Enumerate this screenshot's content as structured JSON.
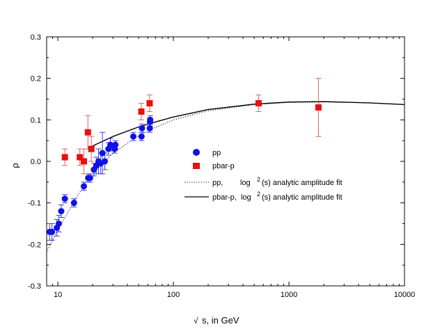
{
  "chart_data": {
    "type": "scatter",
    "x_scale": "log",
    "xlim": [
      8,
      10000
    ],
    "ylim": [
      -0.3,
      0.3
    ],
    "xlabel_root": "√",
    "xlabel": "s, in GeV",
    "ylabel": "ρ",
    "x_ticks": [
      {
        "value": 10,
        "label": "10"
      },
      {
        "value": 100,
        "label": "100"
      },
      {
        "value": 1000,
        "label": "1000"
      },
      {
        "value": 10000,
        "label": "10000"
      }
    ],
    "y_ticks": [
      {
        "value": -0.3,
        "label": "-0.3"
      },
      {
        "value": -0.2,
        "label": "-0.2"
      },
      {
        "value": -0.1,
        "label": "-0.1"
      },
      {
        "value": 0.0,
        "label": "0.0"
      },
      {
        "value": 0.1,
        "label": "0.1"
      },
      {
        "value": 0.2,
        "label": "0.2"
      },
      {
        "value": 0.3,
        "label": "0.3"
      }
    ],
    "series": [
      {
        "name": "pp",
        "marker": "circle",
        "color": "#1010e8",
        "error_color": "#3a3ae0",
        "points": [
          {
            "x": 8.5,
            "y": -0.17,
            "err": 0.02
          },
          {
            "x": 8.9,
            "y": -0.17,
            "err": 0.02
          },
          {
            "x": 9.8,
            "y": -0.16,
            "err": 0.02
          },
          {
            "x": 10.2,
            "y": -0.15,
            "err": 0.02
          },
          {
            "x": 10.7,
            "y": -0.12,
            "err": 0.015
          },
          {
            "x": 11.5,
            "y": -0.09,
            "err": 0.01
          },
          {
            "x": 13.8,
            "y": -0.1,
            "err": 0.01
          },
          {
            "x": 16.8,
            "y": -0.06,
            "err": 0.01
          },
          {
            "x": 18.3,
            "y": -0.04,
            "err": 0.01
          },
          {
            "x": 19.0,
            "y": -0.04,
            "err": 0.01
          },
          {
            "x": 20.5,
            "y": -0.02,
            "err": 0.015
          },
          {
            "x": 21.5,
            "y": -0.01,
            "err": 0.02
          },
          {
            "x": 22.5,
            "y": 0.0,
            "err": 0.03
          },
          {
            "x": 23.5,
            "y": -0.005,
            "err": 0.025
          },
          {
            "x": 24.3,
            "y": 0.02,
            "err": 0.05
          },
          {
            "x": 25.5,
            "y": 0.0,
            "err": 0.02
          },
          {
            "x": 27.4,
            "y": 0.03,
            "err": 0.015
          },
          {
            "x": 28.5,
            "y": 0.04,
            "err": 0.015
          },
          {
            "x": 31.0,
            "y": 0.03,
            "err": 0.01
          },
          {
            "x": 31.5,
            "y": 0.04,
            "err": 0.01
          },
          {
            "x": 45.0,
            "y": 0.06,
            "err": 0.01
          },
          {
            "x": 53.0,
            "y": 0.06,
            "err": 0.01
          },
          {
            "x": 53.5,
            "y": 0.08,
            "err": 0.01
          },
          {
            "x": 62.5,
            "y": 0.08,
            "err": 0.01
          },
          {
            "x": 62.7,
            "y": 0.095,
            "err": 0.01
          },
          {
            "x": 63.0,
            "y": 0.1,
            "err": 0.01
          }
        ]
      },
      {
        "name": "pbar-p",
        "marker": "square",
        "color": "#e81010",
        "error_color": "#e06060",
        "points": [
          {
            "x": 11.5,
            "y": 0.01,
            "err": 0.02
          },
          {
            "x": 15.5,
            "y": 0.01,
            "err": 0.02
          },
          {
            "x": 16.8,
            "y": 0.0,
            "err": 0.03
          },
          {
            "x": 18.2,
            "y": 0.07,
            "err": 0.04
          },
          {
            "x": 19.5,
            "y": 0.03,
            "err": 0.03
          },
          {
            "x": 52.8,
            "y": 0.12,
            "err": 0.02
          },
          {
            "x": 62.3,
            "y": 0.14,
            "err": 0.02
          },
          {
            "x": 546,
            "y": 0.14,
            "err": 0.02
          },
          {
            "x": 1800,
            "y": 0.13,
            "err": 0.07
          }
        ]
      }
    ],
    "fits": [
      {
        "name": "pp, log²(s) analytic amplitude fit",
        "style": "dotted",
        "points": [
          [
            8,
            -0.218
          ],
          [
            10,
            -0.165
          ],
          [
            15,
            -0.08
          ],
          [
            20,
            -0.03
          ],
          [
            30,
            0.02
          ],
          [
            50,
            0.062
          ],
          [
            70,
            0.082
          ],
          [
            100,
            0.1
          ],
          [
            200,
            0.122
          ],
          [
            500,
            0.137
          ],
          [
            1000,
            0.142
          ],
          [
            2000,
            0.143
          ],
          [
            5000,
            0.141
          ],
          [
            10000,
            0.137
          ]
        ]
      },
      {
        "name": "pbar-p, log²(s) analytic amplitude fit",
        "style": "solid",
        "points": [
          [
            20,
            0.037
          ],
          [
            30,
            0.06
          ],
          [
            50,
            0.083
          ],
          [
            70,
            0.095
          ],
          [
            100,
            0.107
          ],
          [
            200,
            0.125
          ],
          [
            500,
            0.138
          ],
          [
            1000,
            0.143
          ],
          [
            2000,
            0.144
          ],
          [
            5000,
            0.141
          ],
          [
            10000,
            0.137
          ]
        ]
      }
    ],
    "legend": {
      "position": "center-right",
      "entries": [
        {
          "marker": "circle",
          "label": "pp"
        },
        {
          "marker": "square",
          "label": "pbar-p"
        },
        {
          "marker": "dotted-line",
          "label": "pp,",
          "formula": "log",
          "sup": "2",
          "suffix": "(s) analytic amplitude fit"
        },
        {
          "marker": "solid-line",
          "label": "pbar-p,",
          "formula": "log",
          "sup": "2",
          "suffix": "(s) analytic amplitude fit"
        }
      ]
    }
  }
}
